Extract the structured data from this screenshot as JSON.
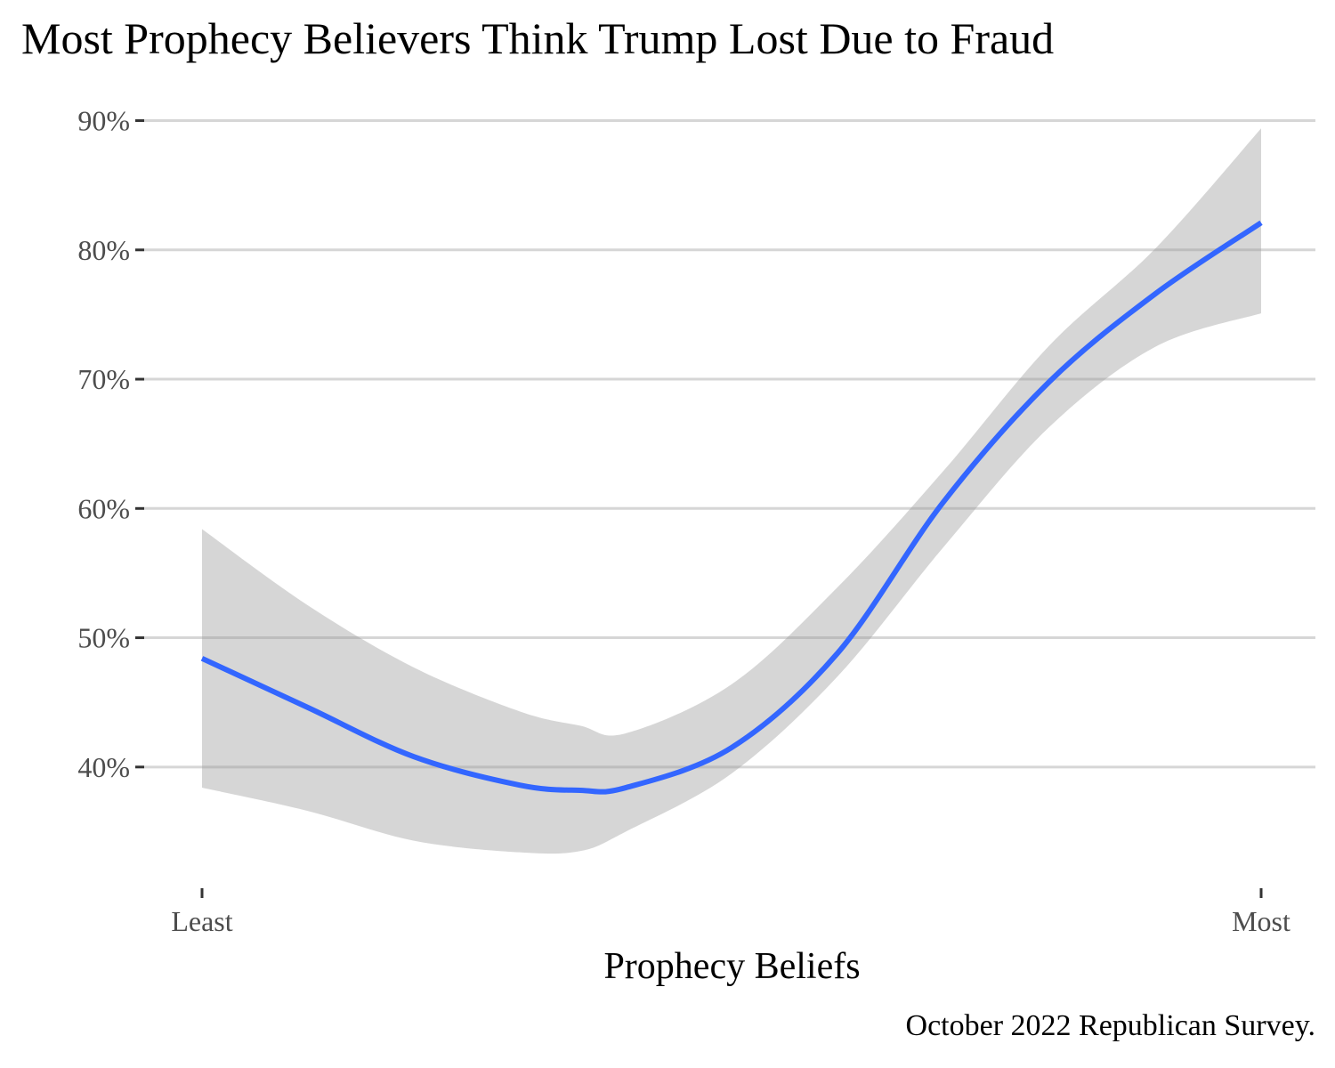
{
  "chart_data": {
    "type": "line",
    "title": "Most Prophecy Believers Think Trump Lost Due to Fraud",
    "xlabel": "Prophecy Beliefs",
    "ylabel": "",
    "caption": "October 2022 Republican Survey.",
    "x_tick_labels": [
      "Least",
      "Most"
    ],
    "y_ticks": [
      40,
      50,
      60,
      70,
      80,
      90
    ],
    "y_tick_labels": [
      "40%",
      "50%",
      "60%",
      "70%",
      "80%",
      "90%"
    ],
    "xlim": [
      0,
      1
    ],
    "ylim": [
      30.9,
      91
    ],
    "grid": "horizontal major",
    "series": [
      {
        "x": [
          0,
          0.1,
          0.2,
          0.3,
          0.357,
          0.4,
          0.5,
          0.6,
          0.7,
          0.8,
          0.9,
          1.0
        ],
        "values": [
          48.4,
          44.6,
          40.8,
          38.6,
          38.2,
          38.4,
          41.5,
          48.8,
          60.5,
          69.8,
          76.6,
          82.1
        ],
        "ci_upper": [
          58.4,
          52.5,
          47.7,
          44.3,
          43.2,
          42.6,
          46.4,
          53.9,
          62.9,
          72.6,
          80.1,
          89.4
        ],
        "ci_lower": [
          38.4,
          36.6,
          34.3,
          33.4,
          33.5,
          35.0,
          39.5,
          47.0,
          57.0,
          66.3,
          72.5,
          75.1
        ]
      }
    ],
    "colors": {
      "line": "#3366FF",
      "band": "#D4D4D4",
      "grid": "#D6D6D6",
      "tick_text": "#4D4D4D"
    }
  }
}
